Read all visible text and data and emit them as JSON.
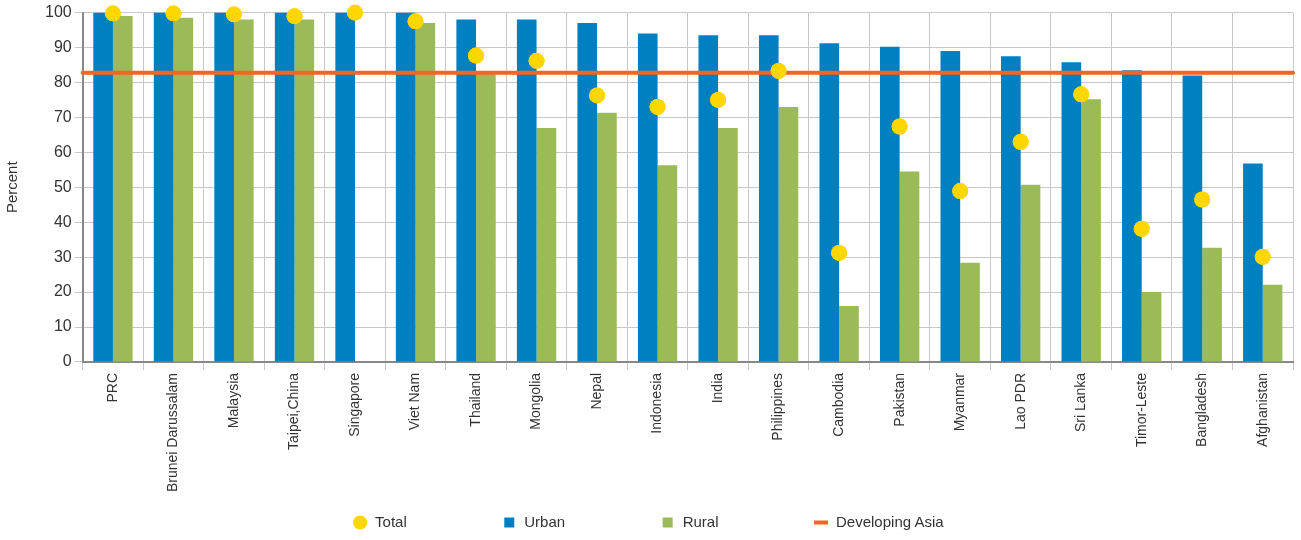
{
  "chart_data": {
    "type": "bar",
    "ylabel": "Percent",
    "categories": [
      "PRC",
      "Brunei Darussalam",
      "Malaysia",
      "Taipei,China",
      "Singapore",
      "Viet Nam",
      "Thailand",
      "Mongolia",
      "Nepal",
      "Indonesia",
      "India",
      "Philippines",
      "Cambodia",
      "Pakistan",
      "Myanmar",
      "Lao PDR",
      "Sri Lanka",
      "Timor-Leste",
      "Bangladesh",
      "Afghanistan"
    ],
    "series": [
      {
        "name": "Urban",
        "color": "#0080c0",
        "values": [
          100,
          100,
          100,
          100,
          100,
          100,
          98,
          98,
          97,
          94,
          93.5,
          93.5,
          91.2,
          90.2,
          89,
          87.5,
          85.8,
          83.5,
          82,
          56.8
        ]
      },
      {
        "name": "Rural",
        "color": "#9bbb59",
        "values": [
          99,
          98.5,
          98,
          98,
          null,
          97,
          83,
          67,
          71.3,
          56.3,
          67,
          73,
          16,
          54.5,
          28.4,
          50.7,
          75.2,
          20,
          32.7,
          22.1
        ]
      },
      {
        "name": "Total",
        "type": "scatter",
        "color": "#ffd700",
        "x": [
          "PRC",
          "Brunei Darussalam",
          "Malaysia",
          "Taipei,China",
          "Singapore",
          "Viet Nam",
          "Thailand",
          "Mongolia",
          "Nepal",
          "Indonesia",
          "India",
          "Philippines",
          "Cambodia",
          "Pakistan",
          "Myanmar",
          "Lao PDR",
          "Sri Lanka",
          "Timor-Leste",
          "Bangladesh",
          "Afghanistan"
        ],
        "values": [
          99.8,
          99.8,
          99.5,
          99,
          100,
          97.5,
          87.7,
          86.2,
          76.3,
          73,
          75,
          83.3,
          31.2,
          67.4,
          48.9,
          63,
          76.6,
          38.1,
          46.5,
          30.1
        ]
      }
    ],
    "ref_lines": [
      {
        "axis": "y",
        "value": 82.8,
        "label": "Developing Asia",
        "color": "#f26522"
      }
    ],
    "ylim": [
      0,
      100
    ],
    "yticks": [
      0,
      10,
      20,
      30,
      40,
      50,
      60,
      70,
      80,
      90,
      100
    ],
    "grid": true,
    "legend": "bottom",
    "marker": "circle"
  }
}
